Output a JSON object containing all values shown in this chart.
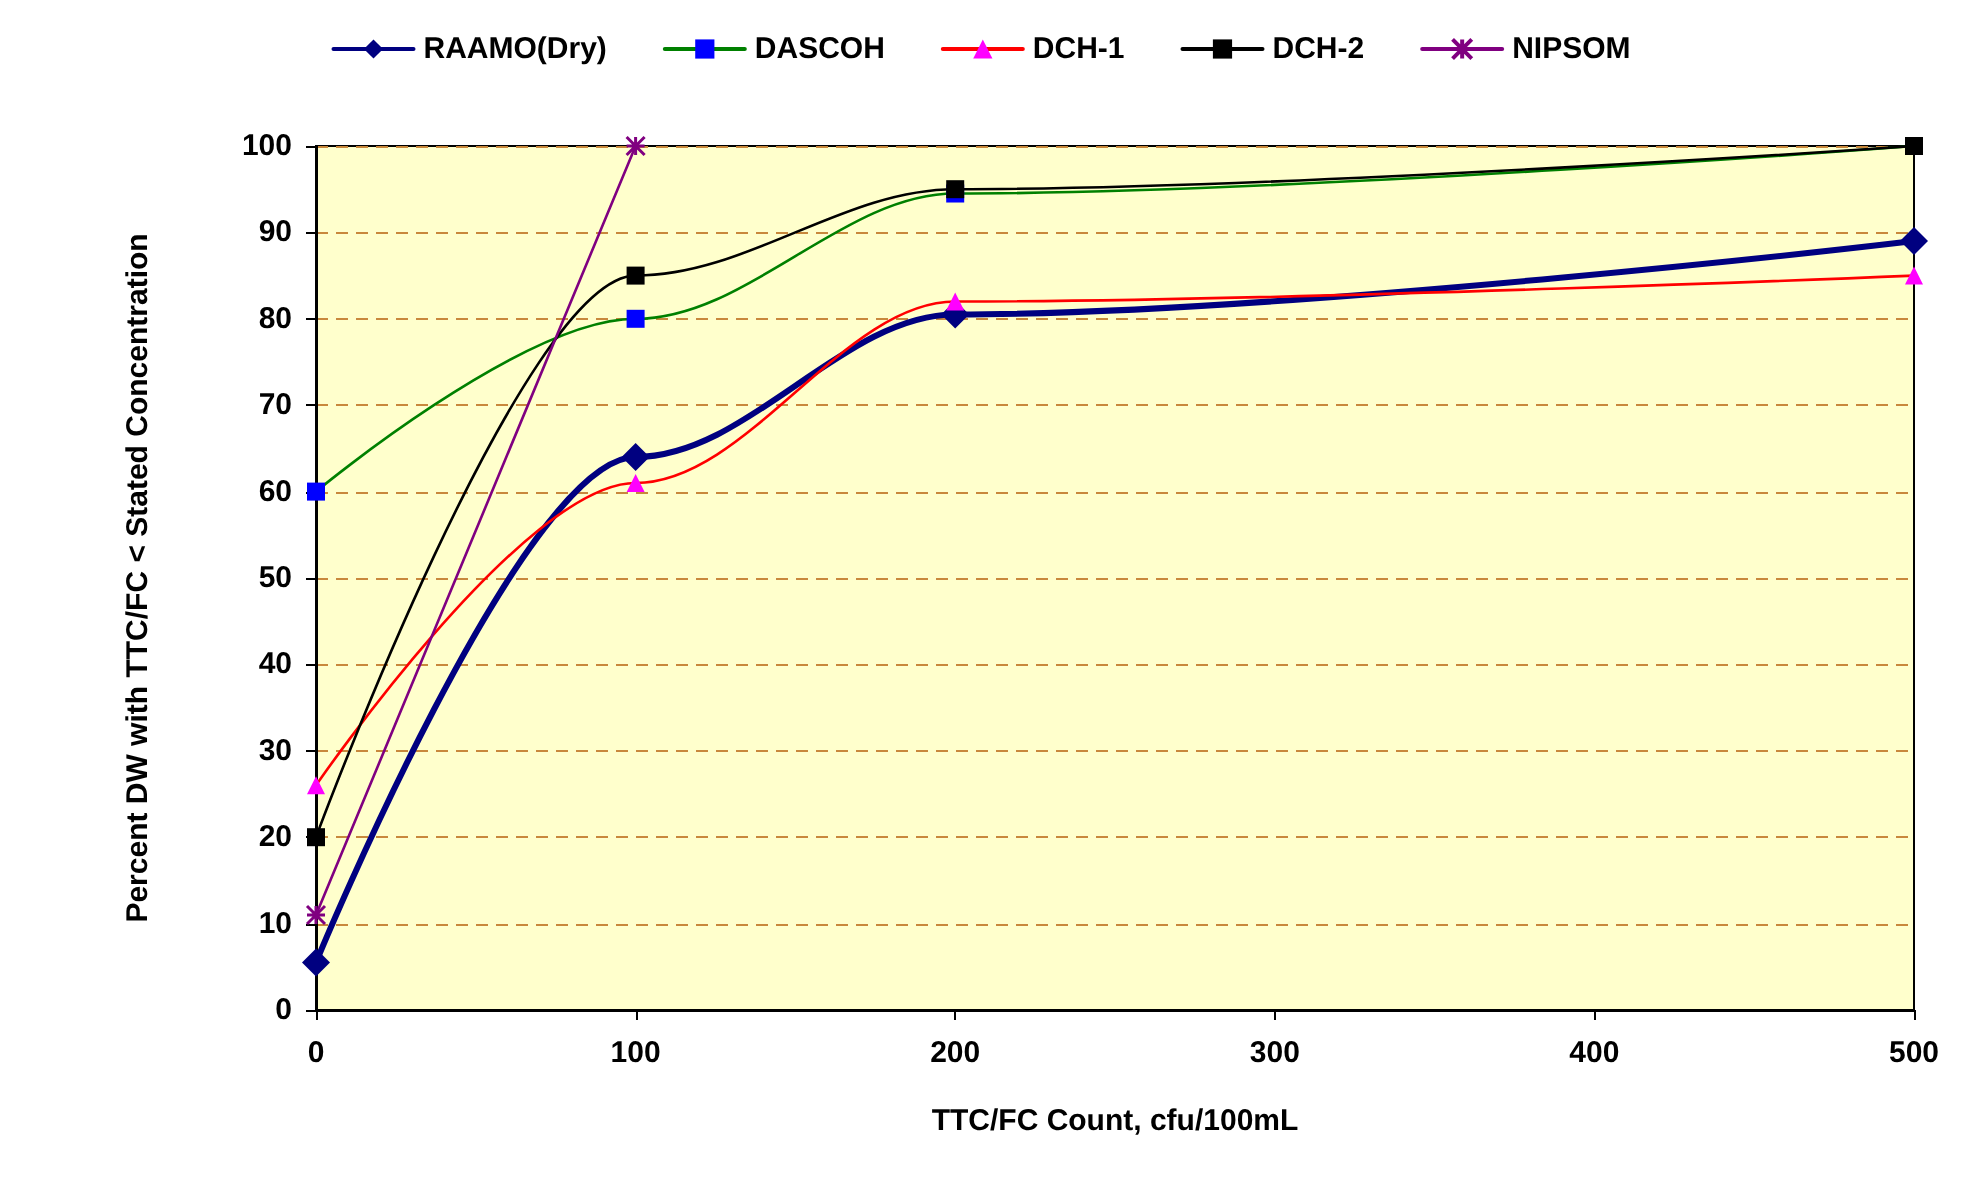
{
  "chart_data": {
    "type": "line",
    "xlabel": "TTC/FC Count, cfu/100mL",
    "ylabel": "Percent DW with TTC/FC < Stated Concentration",
    "xlim": [
      0,
      500
    ],
    "xticks": [
      0,
      100,
      200,
      300,
      400,
      500
    ],
    "ylim": [
      0,
      100
    ],
    "yticks": [
      0,
      10,
      20,
      30,
      40,
      50,
      60,
      70,
      80,
      90,
      100
    ],
    "grid": "y",
    "legend": "top",
    "line_style": "solid",
    "series": [
      {
        "name": "RAAMO(Dry)",
        "color": "#000080",
        "marker": "diamond",
        "x": [
          0,
          100,
          200,
          500
        ],
        "values": [
          5.5,
          64,
          80.5,
          89
        ]
      },
      {
        "name": "DASCOH",
        "color": "#008000",
        "marker": "square",
        "x": [
          0,
          100,
          200,
          500
        ],
        "values": [
          60,
          80,
          94.5,
          100
        ]
      },
      {
        "name": "DCH-1",
        "color": "#ff0000",
        "marker": "triangle",
        "x": [
          0,
          100,
          200,
          500
        ],
        "values": [
          26,
          61,
          82,
          85
        ]
      },
      {
        "name": "DCH-2",
        "color": "#000000",
        "marker": "square",
        "x": [
          0,
          100,
          200,
          500
        ],
        "values": [
          20,
          85,
          95,
          100
        ]
      },
      {
        "name": "NIPSOM",
        "color": "#800080",
        "marker": "cross",
        "x": [
          0,
          100
        ],
        "values": [
          11,
          100
        ]
      }
    ]
  }
}
